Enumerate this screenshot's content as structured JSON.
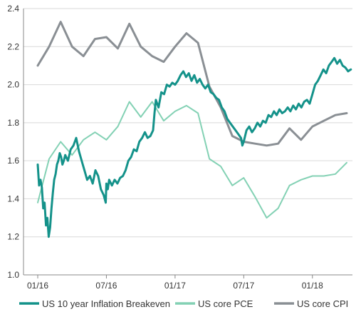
{
  "chart_data": {
    "type": "line",
    "title": "",
    "xlabel": "",
    "ylabel": "",
    "ylim": [
      1.0,
      2.4
    ],
    "yticks": [
      "1.0",
      "1.2",
      "1.4",
      "1.6",
      "1.8",
      "2.0",
      "2.2",
      "2.4"
    ],
    "xticks": [
      "01/16",
      "07/16",
      "01/17",
      "07/17",
      "01/18"
    ],
    "grid": "horizontal",
    "legend_position": "bottom",
    "series": [
      {
        "name": "US 10 year Inflation Breakeven",
        "color": "#14928a",
        "width": 3,
        "x": [
          2016.0,
          2016.01,
          2016.02,
          2016.03,
          2016.04,
          2016.05,
          2016.06,
          2016.07,
          2016.08,
          2016.09,
          2016.1,
          2016.11,
          2016.12,
          2016.13,
          2016.14,
          2016.15,
          2016.16,
          2016.17,
          2016.18,
          2016.19,
          2016.2,
          2016.22,
          2016.24,
          2016.26,
          2016.28,
          2016.3,
          2016.32,
          2016.34,
          2016.36,
          2016.38,
          2016.4,
          2016.42,
          2016.44,
          2016.46,
          2016.48,
          2016.495,
          2016.5,
          2016.51,
          2016.52,
          2016.54,
          2016.56,
          2016.58,
          2016.6,
          2016.62,
          2016.64,
          2016.66,
          2016.68,
          2016.7,
          2016.72,
          2016.74,
          2016.76,
          2016.78,
          2016.8,
          2016.82,
          2016.84,
          2016.85,
          2016.86,
          2016.88,
          2016.9,
          2016.92,
          2016.94,
          2016.96,
          2016.98,
          2017.0,
          2017.02,
          2017.04,
          2017.06,
          2017.08,
          2017.1,
          2017.12,
          2017.14,
          2017.16,
          2017.18,
          2017.2,
          2017.22,
          2017.24,
          2017.26,
          2017.28,
          2017.3,
          2017.32,
          2017.34,
          2017.36,
          2017.38,
          2017.4,
          2017.42,
          2017.44,
          2017.46,
          2017.48,
          2017.49,
          2017.5,
          2017.52,
          2017.54,
          2017.56,
          2017.58,
          2017.6,
          2017.62,
          2017.64,
          2017.66,
          2017.68,
          2017.7,
          2017.72,
          2017.74,
          2017.76,
          2017.78,
          2017.8,
          2017.82,
          2017.84,
          2017.86,
          2017.88,
          2017.9,
          2017.92,
          2017.94,
          2017.96,
          2017.98,
          2018.0,
          2018.02,
          2018.04,
          2018.06,
          2018.08,
          2018.1,
          2018.12,
          2018.14,
          2018.16,
          2018.18,
          2018.2,
          2018.22,
          2018.24,
          2018.26,
          2018.28
        ],
        "y": [
          1.58,
          1.47,
          1.5,
          1.46,
          1.35,
          1.38,
          1.26,
          1.3,
          1.2,
          1.25,
          1.35,
          1.43,
          1.5,
          1.53,
          1.58,
          1.6,
          1.64,
          1.62,
          1.58,
          1.6,
          1.63,
          1.6,
          1.66,
          1.68,
          1.72,
          1.65,
          1.6,
          1.55,
          1.5,
          1.52,
          1.48,
          1.55,
          1.52,
          1.45,
          1.42,
          1.38,
          1.48,
          1.45,
          1.5,
          1.47,
          1.5,
          1.48,
          1.51,
          1.52,
          1.55,
          1.6,
          1.62,
          1.66,
          1.65,
          1.7,
          1.72,
          1.75,
          1.72,
          1.73,
          1.76,
          1.85,
          1.92,
          1.88,
          1.96,
          1.95,
          2.0,
          1.99,
          2.01,
          2.0,
          2.02,
          2.05,
          2.07,
          2.04,
          2.06,
          2.02,
          2.05,
          2.01,
          2.03,
          2.0,
          1.98,
          2.0,
          1.96,
          1.95,
          1.93,
          1.92,
          1.88,
          1.86,
          1.82,
          1.8,
          1.78,
          1.76,
          1.74,
          1.72,
          1.68,
          1.7,
          1.76,
          1.78,
          1.75,
          1.77,
          1.8,
          1.78,
          1.81,
          1.8,
          1.84,
          1.83,
          1.86,
          1.84,
          1.87,
          1.85,
          1.86,
          1.88,
          1.86,
          1.89,
          1.87,
          1.9,
          1.88,
          1.91,
          1.92,
          1.9,
          1.95,
          2.0,
          2.02,
          2.05,
          2.08,
          2.06,
          2.1,
          2.12,
          2.14,
          2.11,
          2.13,
          2.1,
          2.09,
          2.07,
          2.08
        ]
      },
      {
        "name": "US core PCE",
        "color": "#83d1b4",
        "width": 2,
        "x": [
          2016.0,
          2016.083,
          2016.167,
          2016.25,
          2016.333,
          2016.417,
          2016.5,
          2016.583,
          2016.667,
          2016.75,
          2016.833,
          2016.917,
          2017.0,
          2017.083,
          2017.167,
          2017.25,
          2017.333,
          2017.417,
          2017.5,
          2017.583,
          2017.667,
          2017.75,
          2017.833,
          2017.917,
          2018.0,
          2018.083,
          2018.167,
          2018.25
        ],
        "y": [
          1.38,
          1.61,
          1.7,
          1.63,
          1.71,
          1.75,
          1.71,
          1.78,
          1.91,
          1.83,
          1.91,
          1.81,
          1.86,
          1.89,
          1.85,
          1.61,
          1.57,
          1.47,
          1.51,
          1.41,
          1.3,
          1.35,
          1.47,
          1.5,
          1.52,
          1.52,
          1.53,
          1.59
        ]
      },
      {
        "name": "US core CPI",
        "color": "#8a8f94",
        "width": 3,
        "x": [
          2016.0,
          2016.083,
          2016.167,
          2016.25,
          2016.333,
          2016.417,
          2016.5,
          2016.583,
          2016.667,
          2016.75,
          2016.833,
          2016.917,
          2017.0,
          2017.083,
          2017.167,
          2017.25,
          2017.333,
          2017.417,
          2017.5,
          2017.583,
          2017.667,
          2017.75,
          2017.833,
          2017.917,
          2018.0,
          2018.083,
          2018.167,
          2018.25
        ],
        "y": [
          2.1,
          2.2,
          2.33,
          2.2,
          2.15,
          2.24,
          2.25,
          2.19,
          2.32,
          2.2,
          2.15,
          2.12,
          2.2,
          2.27,
          2.22,
          1.99,
          1.88,
          1.73,
          1.7,
          1.69,
          1.68,
          1.69,
          1.77,
          1.71,
          1.78,
          1.81,
          1.84,
          1.85
        ]
      }
    ]
  }
}
